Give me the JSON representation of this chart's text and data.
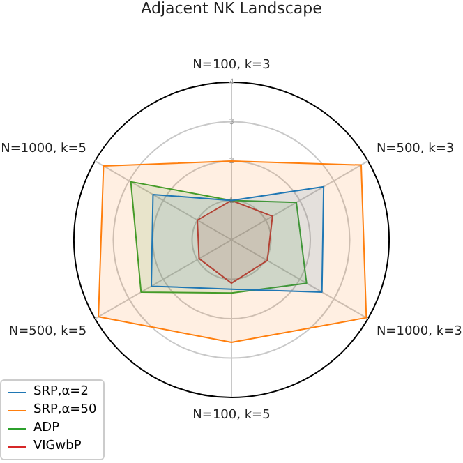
{
  "chart_data": {
    "type": "radar",
    "title": "Adjacent NK Landscape",
    "categories": [
      "N=100, k=3",
      "N=500, k=3",
      "N=1000, k=3",
      "N=100, k=5",
      "N=500, k=5",
      "N=1000, k=5"
    ],
    "ylim": [
      0,
      4
    ],
    "yticks": [
      1,
      2,
      3,
      4
    ],
    "grid": true,
    "legend": "bottom left",
    "series": [
      {
        "name": "SRP,α=2",
        "color": "#1f77b4",
        "values": [
          1.0,
          2.7,
          2.65,
          1.25,
          2.35,
          2.3
        ]
      },
      {
        "name": "SRP,α=50",
        "color": "#ff7f0e",
        "values": [
          2.0,
          3.8,
          3.95,
          2.6,
          3.9,
          3.75
        ]
      },
      {
        "name": "ADP",
        "color": "#2ca02c",
        "values": [
          1.0,
          1.9,
          2.2,
          1.35,
          2.65,
          2.95
        ]
      },
      {
        "name": "VIGwbP",
        "color": "#d62728",
        "values": [
          1.0,
          1.2,
          1.05,
          1.1,
          0.95,
          1.0
        ]
      }
    ]
  }
}
